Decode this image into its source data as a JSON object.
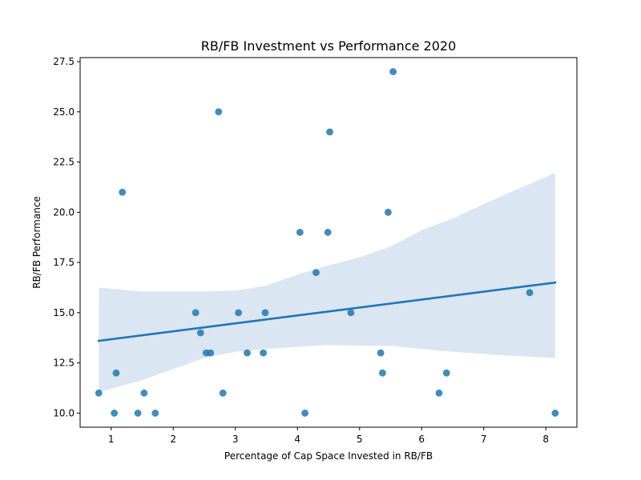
{
  "chart_data": {
    "type": "scatter",
    "title": "RB/FB Investment vs Performance 2020",
    "xlabel": "Percentage of Cap Space Invested in RB/FB",
    "ylabel": "RB/FB Performance",
    "xlim": [
      0.5,
      8.5
    ],
    "ylim": [
      9.3,
      27.7
    ],
    "xticks": [
      1,
      2,
      3,
      4,
      5,
      6,
      7,
      8
    ],
    "yticks": [
      10.0,
      12.5,
      15.0,
      17.5,
      20.0,
      22.5,
      25.0,
      27.5
    ],
    "xtick_labels": [
      "1",
      "2",
      "3",
      "4",
      "5",
      "6",
      "7",
      "8"
    ],
    "ytick_labels": [
      "10.0",
      "12.5",
      "15.0",
      "17.5",
      "20.0",
      "22.5",
      "25.0",
      "27.5"
    ],
    "grid": false,
    "points": [
      {
        "x": 0.8,
        "y": 11
      },
      {
        "x": 1.05,
        "y": 10
      },
      {
        "x": 1.08,
        "y": 12
      },
      {
        "x": 1.18,
        "y": 21
      },
      {
        "x": 1.43,
        "y": 10
      },
      {
        "x": 1.53,
        "y": 11
      },
      {
        "x": 1.71,
        "y": 10
      },
      {
        "x": 2.36,
        "y": 15
      },
      {
        "x": 2.44,
        "y": 14
      },
      {
        "x": 2.53,
        "y": 13
      },
      {
        "x": 2.6,
        "y": 13
      },
      {
        "x": 2.73,
        "y": 25
      },
      {
        "x": 2.8,
        "y": 11
      },
      {
        "x": 3.05,
        "y": 15
      },
      {
        "x": 3.19,
        "y": 13
      },
      {
        "x": 3.45,
        "y": 13
      },
      {
        "x": 3.48,
        "y": 15
      },
      {
        "x": 4.04,
        "y": 19
      },
      {
        "x": 4.12,
        "y": 10
      },
      {
        "x": 4.3,
        "y": 17
      },
      {
        "x": 4.49,
        "y": 19
      },
      {
        "x": 4.52,
        "y": 24
      },
      {
        "x": 4.86,
        "y": 15
      },
      {
        "x": 5.34,
        "y": 13
      },
      {
        "x": 5.37,
        "y": 12
      },
      {
        "x": 5.46,
        "y": 20
      },
      {
        "x": 5.54,
        "y": 27
      },
      {
        "x": 6.28,
        "y": 11
      },
      {
        "x": 6.4,
        "y": 12
      },
      {
        "x": 7.74,
        "y": 16
      },
      {
        "x": 8.15,
        "y": 10
      }
    ],
    "regression": {
      "x": [
        0.8,
        8.15
      ],
      "y": [
        13.6,
        16.5
      ]
    },
    "confidence_band": {
      "x": [
        0.8,
        1.5,
        2.0,
        2.5,
        3.0,
        3.5,
        4.0,
        4.5,
        5.0,
        5.5,
        6.0,
        6.5,
        7.0,
        7.5,
        8.15
      ],
      "upper": [
        16.25,
        16.05,
        16.05,
        16.05,
        16.1,
        16.35,
        16.9,
        17.35,
        17.75,
        18.3,
        19.1,
        19.7,
        20.4,
        21.1,
        21.95
      ],
      "lower": [
        11.05,
        11.65,
        12.2,
        12.75,
        13.05,
        13.2,
        13.3,
        13.4,
        13.35,
        13.35,
        13.2,
        13.05,
        12.95,
        12.85,
        12.75
      ]
    },
    "colors": {
      "point": "#1f77b4",
      "line": "#1f77b4",
      "band": "#dae6f1"
    }
  }
}
